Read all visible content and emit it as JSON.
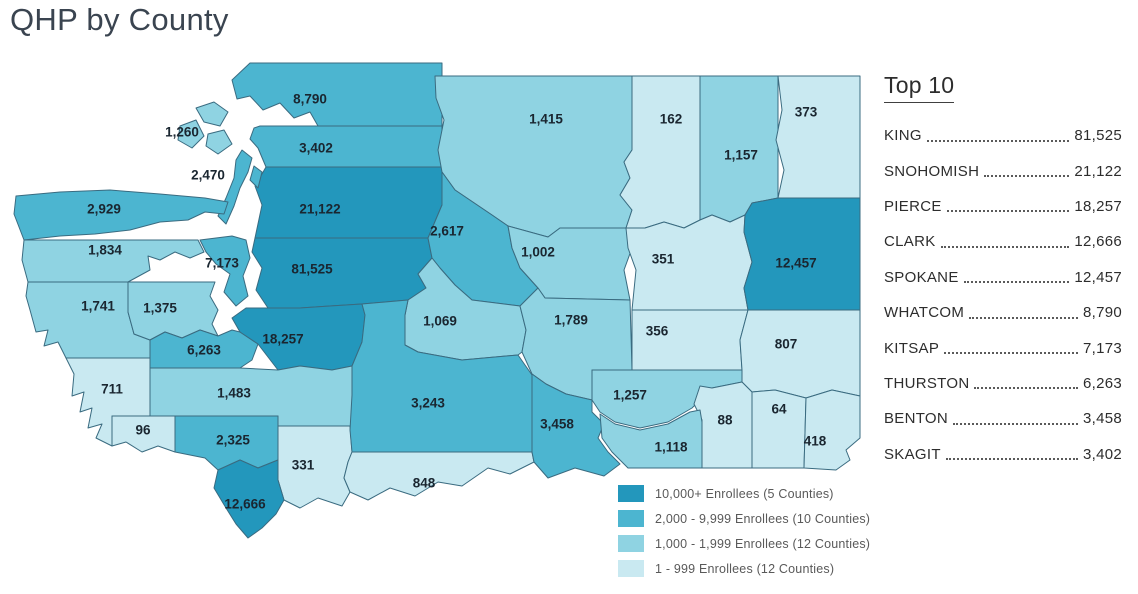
{
  "title": "QHP by County",
  "map": {
    "counties": [
      {
        "id": "whatcom",
        "value": "8,790",
        "tier": 2
      },
      {
        "id": "skagit",
        "value": "3,402",
        "tier": 2
      },
      {
        "id": "snohomish",
        "value": "21,122",
        "tier": 1
      },
      {
        "id": "san-juan",
        "value": "1,260",
        "tier": 3
      },
      {
        "id": "island",
        "value": "2,470",
        "tier": 2
      },
      {
        "id": "clallam",
        "value": "2,929",
        "tier": 2
      },
      {
        "id": "jefferson",
        "value": "1,834",
        "tier": 3
      },
      {
        "id": "grays-harbor",
        "value": "1,741",
        "tier": 3
      },
      {
        "id": "mason",
        "value": "1,375",
        "tier": 3
      },
      {
        "id": "kitsap",
        "value": "7,173",
        "tier": 2
      },
      {
        "id": "king",
        "value": "81,525",
        "tier": 1
      },
      {
        "id": "thurston",
        "value": "6,263",
        "tier": 2
      },
      {
        "id": "pierce",
        "value": "18,257",
        "tier": 1
      },
      {
        "id": "pacific",
        "value": "711",
        "tier": 4
      },
      {
        "id": "lewis",
        "value": "1,483",
        "tier": 3
      },
      {
        "id": "wahkiakum",
        "value": "96",
        "tier": 4
      },
      {
        "id": "cowlitz",
        "value": "2,325",
        "tier": 2
      },
      {
        "id": "skamania",
        "value": "331",
        "tier": 4
      },
      {
        "id": "clark",
        "value": "12,666",
        "tier": 1
      },
      {
        "id": "okanogan",
        "value": "1,415",
        "tier": 3
      },
      {
        "id": "chelan",
        "value": "2,617",
        "tier": 2
      },
      {
        "id": "douglas",
        "value": "1,002",
        "tier": 3
      },
      {
        "id": "kittitas",
        "value": "1,069",
        "tier": 3
      },
      {
        "id": "grant",
        "value": "1,789",
        "tier": 3
      },
      {
        "id": "yakima",
        "value": "3,243",
        "tier": 2
      },
      {
        "id": "klickitat",
        "value": "848",
        "tier": 4
      },
      {
        "id": "benton",
        "value": "3,458",
        "tier": 2
      },
      {
        "id": "ferry",
        "value": "162",
        "tier": 4
      },
      {
        "id": "stevens",
        "value": "1,157",
        "tier": 3
      },
      {
        "id": "pend-oreille",
        "value": "373",
        "tier": 4
      },
      {
        "id": "lincoln",
        "value": "351",
        "tier": 4
      },
      {
        "id": "spokane",
        "value": "12,457",
        "tier": 1
      },
      {
        "id": "adams",
        "value": "356",
        "tier": 4
      },
      {
        "id": "whitman",
        "value": "807",
        "tier": 4
      },
      {
        "id": "franklin",
        "value": "1,257",
        "tier": 3
      },
      {
        "id": "columbia",
        "value": "88",
        "tier": 4
      },
      {
        "id": "garfield",
        "value": "64",
        "tier": 4
      },
      {
        "id": "asotin",
        "value": "418",
        "tier": 4
      },
      {
        "id": "walla-walla",
        "value": "1,118",
        "tier": 3
      }
    ]
  },
  "legend": {
    "items": [
      {
        "label": "10,000+ Enrollees (5 Counties)",
        "color": "#2397bc"
      },
      {
        "label": "2,000 - 9,999 Enrollees (10 Counties)",
        "color": "#4cb5d0"
      },
      {
        "label": "1,000 - 1,999 Enrollees (12 Counties)",
        "color": "#8fd3e2"
      },
      {
        "label": "1 - 999 Enrollees (12 Counties)",
        "color": "#c9e9f1"
      }
    ]
  },
  "top10": {
    "heading": "Top 10",
    "items": [
      {
        "name": "KING",
        "value": "81,525"
      },
      {
        "name": "SNOHOMISH",
        "value": "21,122"
      },
      {
        "name": "PIERCE",
        "value": "18,257"
      },
      {
        "name": "CLARK",
        "value": "12,666"
      },
      {
        "name": "SPOKANE",
        "value": "12,457"
      },
      {
        "name": "WHATCOM",
        "value": "8,790"
      },
      {
        "name": "KITSAP",
        "value": "7,173"
      },
      {
        "name": "THURSTON",
        "value": "6,263"
      },
      {
        "name": "BENTON",
        "value": "3,458"
      },
      {
        "name": "SKAGIT",
        "value": "3,402"
      }
    ]
  }
}
